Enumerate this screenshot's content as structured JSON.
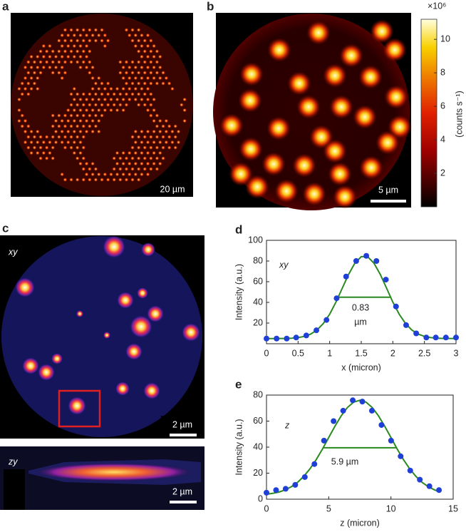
{
  "panels": {
    "a": {
      "label": "a",
      "scale_bar": "20 µm"
    },
    "b": {
      "label": "b",
      "scale_bar": "5 µm"
    },
    "c": {
      "label": "c",
      "tag": "xy",
      "scale_bar": "2 µm"
    },
    "c_zy": {
      "tag": "zy",
      "scale_bar": "2 µm"
    }
  },
  "colorbar": {
    "multiplier": "×10⁶",
    "label": "(counts s⁻¹)",
    "ylim": [
      0,
      11.2
    ],
    "yticks": [
      2,
      4,
      6,
      8,
      10
    ]
  },
  "chart_data": [
    {
      "type": "scatter",
      "panel_label": "d",
      "ylabel": "Intensity (a.u.)",
      "xlabel": "x (micron)",
      "xlim": [
        0,
        3
      ],
      "xticks": [
        0,
        0.5,
        1,
        1.5,
        2,
        2.5,
        3
      ],
      "ylim": [
        0,
        100
      ],
      "yticks": [
        20,
        40,
        60,
        80,
        100
      ],
      "annotations": [
        "xy",
        "0.83",
        "µm"
      ],
      "points": {
        "color": "#1f3fd6",
        "x": [
          0,
          0.16,
          0.32,
          0.47,
          0.63,
          0.79,
          0.95,
          1.11,
          1.26,
          1.42,
          1.58,
          1.74,
          1.89,
          2.05,
          2.21,
          2.37,
          2.53,
          2.68,
          2.84,
          3.0
        ],
        "values": [
          5,
          5,
          5,
          6,
          8,
          13,
          23,
          44,
          65,
          80,
          85,
          80,
          62,
          36,
          18,
          10,
          6,
          6,
          6,
          6
        ]
      },
      "fit": {
        "color": "#2a8a1f",
        "x": [
          0,
          0.1,
          0.2,
          0.3,
          0.4,
          0.5,
          0.6,
          0.7,
          0.8,
          0.9,
          1.0,
          1.1,
          1.2,
          1.3,
          1.4,
          1.5,
          1.6,
          1.7,
          1.8,
          1.9,
          2.0,
          2.1,
          2.2,
          2.3,
          2.4,
          2.5,
          2.6,
          2.7,
          2.8,
          2.9,
          3.0
        ],
        "values": [
          5,
          5,
          5.1,
          5.1,
          5.4,
          5.9,
          7.1,
          9.3,
          13.3,
          19.6,
          28.6,
          40.3,
          53.8,
          67.2,
          78,
          84.2,
          84.2,
          78,
          67.2,
          53.8,
          40.3,
          28.6,
          19.6,
          13.3,
          9.3,
          7.1,
          5.9,
          5.4,
          5.1,
          5.1,
          5
        ]
      },
      "fwhm": {
        "x": [
          1.135,
          1.965
        ],
        "values": [
          45,
          45
        ]
      }
    },
    {
      "type": "scatter",
      "panel_label": "e",
      "ylabel": "Intensity (a.u.)",
      "xlabel": "z (micron)",
      "xlim": [
        0,
        15
      ],
      "xticks": [
        0,
        5,
        10,
        15
      ],
      "ylim": [
        0,
        80
      ],
      "yticks": [
        0,
        20,
        40,
        60,
        80
      ],
      "annotations": [
        "z",
        "5.9 µm"
      ],
      "points": {
        "color": "#1f3fd6",
        "x": [
          0,
          0.77,
          1.54,
          2.31,
          3.08,
          3.85,
          4.62,
          5.39,
          6.16,
          6.93,
          7.7,
          8.47,
          9.24,
          10.01,
          10.78,
          11.55,
          12.32,
          13.09,
          13.86
        ],
        "values": [
          5,
          7,
          8,
          11,
          17,
          27,
          45,
          60,
          68,
          76,
          75,
          68,
          57,
          45,
          33,
          22,
          15,
          10,
          7
        ]
      },
      "fit": {
        "color": "#2a8a1f",
        "x": [
          0,
          0.5,
          1,
          1.5,
          2,
          2.5,
          3,
          3.5,
          4,
          4.5,
          5,
          5.5,
          6,
          6.5,
          7,
          7.5,
          8,
          8.5,
          9,
          9.5,
          10,
          10.5,
          11,
          11.5,
          12,
          12.5,
          13,
          13.5,
          14
        ],
        "values": [
          3.8,
          4.5,
          5.5,
          7.2,
          9.6,
          13,
          17.6,
          23.4,
          30.5,
          38.6,
          47.4,
          56.1,
          64,
          70.4,
          74.6,
          76,
          74.6,
          70.4,
          64,
          56.1,
          47.4,
          38.6,
          30.5,
          23.4,
          17.6,
          13,
          9.6,
          7.2,
          5.5
        ]
      },
      "fwhm": {
        "x": [
          4.55,
          10.45
        ],
        "values": [
          39.5,
          39.5
        ]
      }
    }
  ]
}
